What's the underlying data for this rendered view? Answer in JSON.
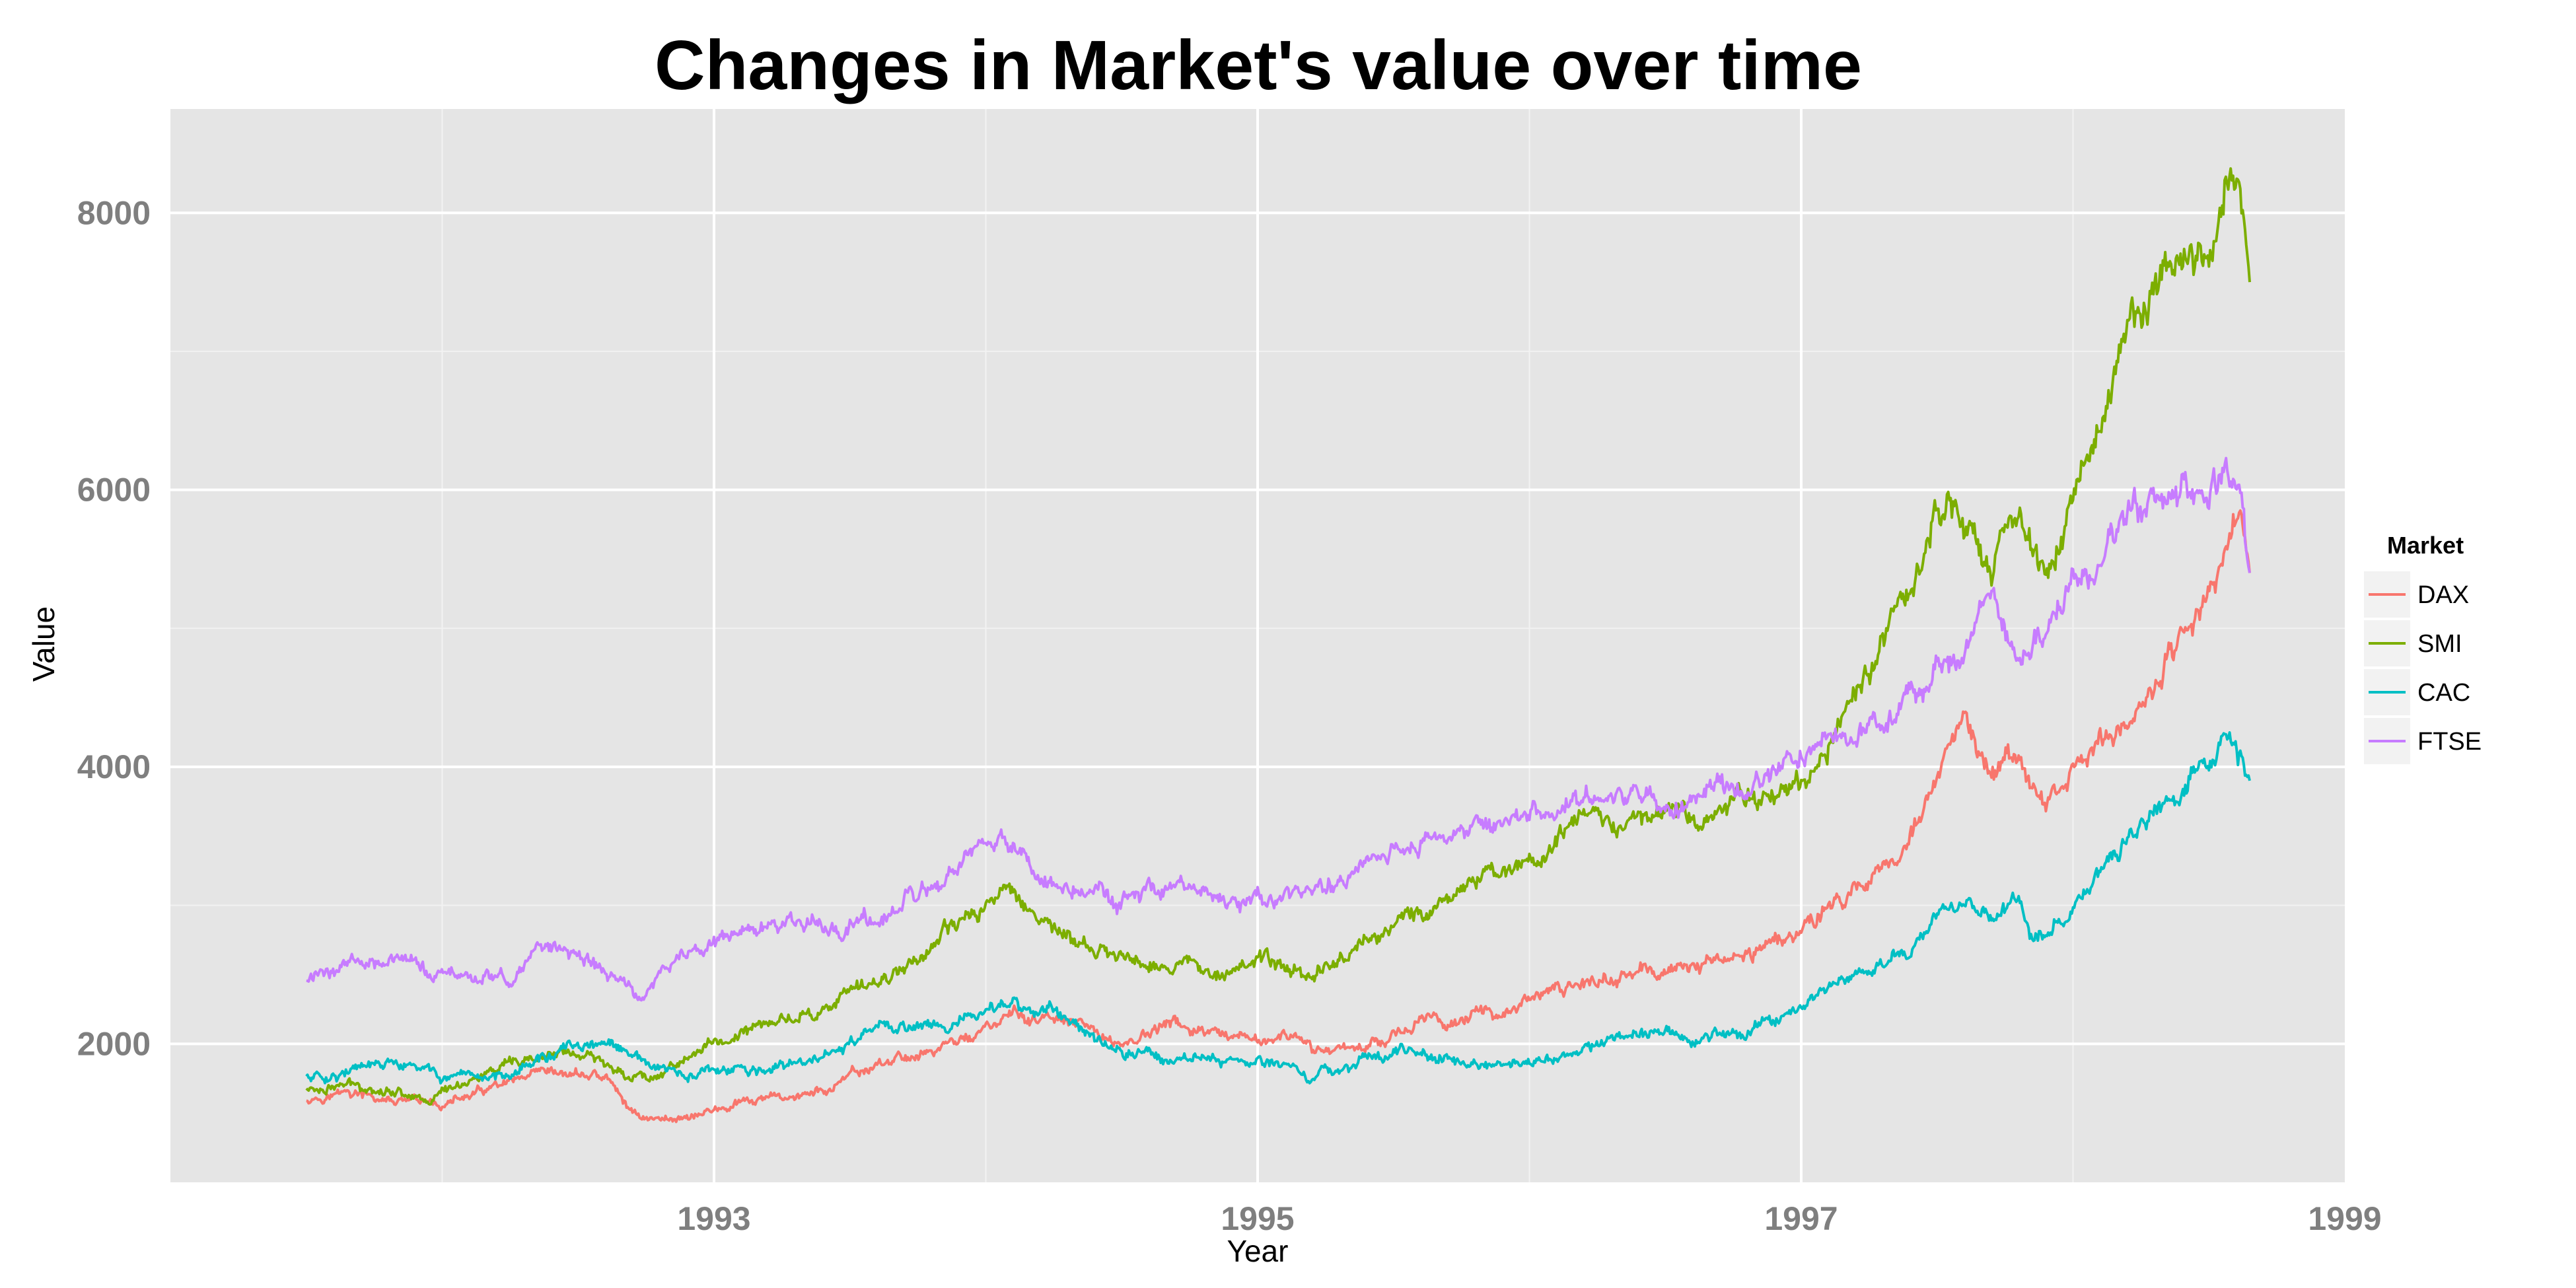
{
  "chart_data": {
    "type": "line",
    "title": "Changes in Market's value over time",
    "xlabel": "Year",
    "ylabel": "Value",
    "xlim": [
      1991.0,
      1999.0
    ],
    "ylim": [
      1000,
      8750
    ],
    "x_ticks": [
      1993,
      1995,
      1997,
      1999
    ],
    "x_tick_labels": [
      "1993",
      "1995",
      "1997",
      "1999"
    ],
    "y_ticks": [
      2000,
      4000,
      6000,
      8000
    ],
    "y_tick_labels": [
      "2000",
      "4000",
      "6000",
      "8000"
    ],
    "grid": true,
    "background": "#e5e5e5",
    "legend": {
      "title": "Market",
      "position": "right"
    },
    "series": [
      {
        "name": "DAX",
        "color": "#F8766D",
        "x": [
          1991.5,
          1991.65,
          1991.75,
          1991.85,
          1992.0,
          1992.2,
          1992.35,
          1992.5,
          1992.6,
          1992.7,
          1992.8,
          1992.9,
          1993.0,
          1993.2,
          1993.4,
          1993.6,
          1993.8,
          1994.0,
          1994.1,
          1994.3,
          1994.5,
          1994.7,
          1994.9,
          1995.1,
          1995.2,
          1995.4,
          1995.6,
          1995.8,
          1996.0,
          1996.2,
          1996.4,
          1996.6,
          1996.8,
          1997.0,
          1997.2,
          1997.3,
          1997.4,
          1997.5,
          1997.6,
          1997.7,
          1997.8,
          1997.85,
          1997.9,
          1998.0,
          1998.2,
          1998.4,
          1998.55,
          1998.62,
          1998.65
        ],
        "values": [
          1610,
          1650,
          1600,
          1570,
          1560,
          1680,
          1750,
          1780,
          1760,
          1500,
          1450,
          1480,
          1520,
          1600,
          1650,
          1850,
          1950,
          2100,
          2200,
          2150,
          2000,
          2150,
          2000,
          2050,
          1950,
          2000,
          2150,
          2200,
          2300,
          2450,
          2500,
          2550,
          2650,
          2850,
          3100,
          3300,
          3500,
          3900,
          4300,
          3900,
          4100,
          3800,
          3700,
          4000,
          4300,
          4900,
          5500,
          5900,
          5400
        ]
      },
      {
        "name": "SMI",
        "color": "#7CAE00",
        "x": [
          1991.5,
          1991.65,
          1991.8,
          1991.95,
          1992.1,
          1992.3,
          1992.45,
          1992.6,
          1992.75,
          1992.9,
          1993.0,
          1993.2,
          1993.4,
          1993.6,
          1993.8,
          1994.0,
          1994.1,
          1994.2,
          1994.4,
          1994.6,
          1994.8,
          1995.0,
          1995.2,
          1995.4,
          1995.6,
          1995.8,
          1996.0,
          1996.2,
          1996.4,
          1996.5,
          1996.6,
          1996.8,
          1997.0,
          1997.1,
          1997.2,
          1997.3,
          1997.4,
          1997.5,
          1997.55,
          1997.65,
          1997.7,
          1997.75,
          1997.8,
          1997.9,
          1998.0,
          1998.1,
          1998.2,
          1998.3,
          1998.4,
          1998.5,
          1998.58,
          1998.62,
          1998.65
        ],
        "values": [
          1670,
          1700,
          1680,
          1600,
          1750,
          1850,
          1950,
          1850,
          1750,
          1900,
          2000,
          2150,
          2250,
          2450,
          2700,
          3000,
          3150,
          2900,
          2650,
          2600,
          2550,
          2600,
          2500,
          2750,
          2950,
          3200,
          3300,
          3600,
          3650,
          3750,
          3600,
          3800,
          3900,
          4200,
          4500,
          4900,
          5300,
          5800,
          5950,
          5500,
          5300,
          5800,
          5850,
          5400,
          6000,
          6500,
          7000,
          7500,
          7500,
          7700,
          8300,
          8000,
          7500
        ]
      },
      {
        "name": "CAC",
        "color": "#00BFC4",
        "x": [
          1991.5,
          1991.65,
          1991.8,
          1991.95,
          1992.1,
          1992.3,
          1992.45,
          1992.6,
          1992.75,
          1992.9,
          1993.0,
          1993.2,
          1993.4,
          1993.6,
          1993.8,
          1994.0,
          1994.1,
          1994.3,
          1994.5,
          1994.7,
          1994.9,
          1995.1,
          1995.2,
          1995.4,
          1995.6,
          1995.8,
          1996.0,
          1996.2,
          1996.4,
          1996.6,
          1996.8,
          1997.0,
          1997.2,
          1997.4,
          1997.5,
          1997.6,
          1997.7,
          1997.8,
          1997.85,
          1997.9,
          1998.0,
          1998.2,
          1998.4,
          1998.5,
          1998.55,
          1998.62,
          1998.65
        ],
        "values": [
          1760,
          1800,
          1850,
          1800,
          1700,
          1850,
          1950,
          2000,
          1850,
          1750,
          1800,
          1800,
          1900,
          2100,
          2150,
          2200,
          2300,
          2200,
          1950,
          1900,
          1900,
          1850,
          1750,
          1900,
          1950,
          1850,
          1850,
          1950,
          2100,
          2050,
          2100,
          2300,
          2500,
          2700,
          2900,
          3000,
          2900,
          3000,
          2750,
          2800,
          2950,
          3500,
          3900,
          4000,
          4200,
          4000,
          3900
        ]
      },
      {
        "name": "FTSE",
        "color": "#C77CFF",
        "x": [
          1991.5,
          1991.65,
          1991.8,
          1991.95,
          1992.1,
          1992.25,
          1992.35,
          1992.5,
          1992.6,
          1992.75,
          1992.85,
          1993.0,
          1993.2,
          1993.4,
          1993.6,
          1993.8,
          1994.0,
          1994.1,
          1994.2,
          1994.4,
          1994.5,
          1994.6,
          1994.8,
          1995.0,
          1995.2,
          1995.4,
          1995.6,
          1995.8,
          1996.0,
          1996.2,
          1996.4,
          1996.6,
          1996.8,
          1997.0,
          1997.2,
          1997.3,
          1997.4,
          1997.5,
          1997.6,
          1997.7,
          1997.8,
          1997.85,
          1997.9,
          1998.0,
          1998.2,
          1998.4,
          1998.5,
          1998.55,
          1998.62,
          1998.65
        ],
        "values": [
          2450,
          2600,
          2650,
          2500,
          2500,
          2450,
          2700,
          2650,
          2500,
          2350,
          2600,
          2750,
          2850,
          2850,
          2900,
          3100,
          3400,
          3450,
          3200,
          3100,
          3000,
          3100,
          3050,
          3000,
          3100,
          3300,
          3450,
          3550,
          3650,
          3750,
          3750,
          3750,
          3900,
          4050,
          4250,
          4300,
          4500,
          4700,
          4900,
          5200,
          4800,
          4900,
          5000,
          5300,
          5700,
          6000,
          5900,
          6100,
          6000,
          5400
        ]
      }
    ]
  }
}
